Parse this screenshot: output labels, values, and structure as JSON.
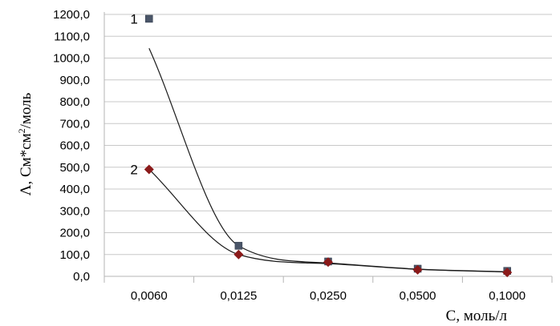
{
  "chart_data": {
    "type": "scatter",
    "x_axis": {
      "label": "C, моль/л",
      "categories": [
        "0,0060",
        "0,0125",
        "0,0250",
        "0,0500",
        "0,1000"
      ]
    },
    "y_axis": {
      "label": "Λ, См*см²/моль",
      "label_main": "Λ, См*см",
      "label_sup": "2",
      "label_tail": "/моль",
      "ticks": [
        "0,0",
        "100,0",
        "200,0",
        "300,0",
        "400,0",
        "500,0",
        "600,0",
        "700,0",
        "800,0",
        "900,0",
        "1000,0",
        "1100,0",
        "1200,0"
      ],
      "range": [
        0,
        1200
      ],
      "step": 100
    },
    "grid": "horizontal",
    "series": [
      {
        "name": "1",
        "marker": "square",
        "color": "#4a5568",
        "values": [
          1180,
          140,
          68,
          35,
          25
        ],
        "trend_values": [
          1045,
          140,
          61,
          33,
          21
        ]
      },
      {
        "name": "2",
        "marker": "diamond",
        "color": "#8b1a1a",
        "values": [
          490,
          100,
          65,
          30,
          18
        ],
        "trend_values": [
          490,
          100,
          58,
          32,
          20
        ]
      }
    ]
  }
}
